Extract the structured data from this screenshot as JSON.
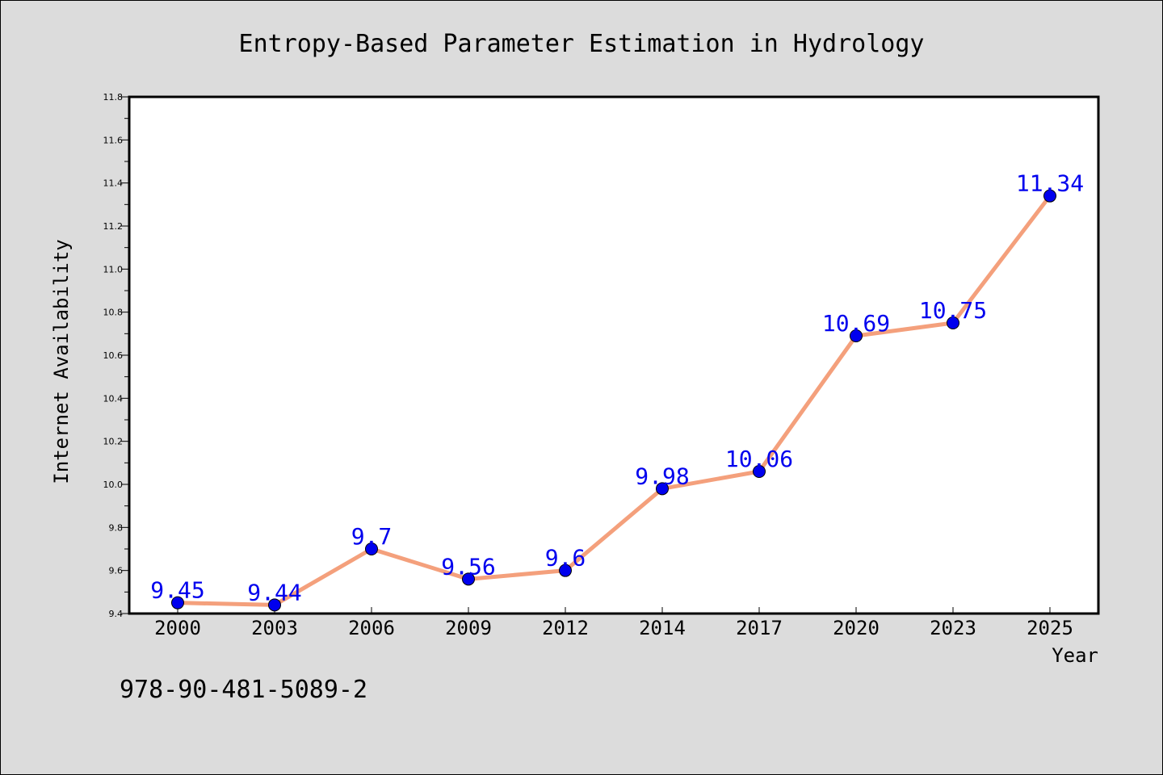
{
  "chart_data": {
    "type": "line",
    "title": "Entropy-Based Parameter Estimation in Hydrology",
    "xlabel": "Year",
    "ylabel": "Internet Availability",
    "categories": [
      "2000",
      "2003",
      "2006",
      "2009",
      "2012",
      "2014",
      "2017",
      "2020",
      "2023",
      "2025"
    ],
    "values": [
      9.45,
      9.44,
      9.7,
      9.56,
      9.6,
      9.98,
      10.06,
      10.69,
      10.75,
      11.34
    ],
    "data_labels": [
      "9.45",
      "9.44",
      "9.7",
      "9.56",
      "9.6",
      "9.98",
      "10.06",
      "10.69",
      "10.75",
      "11.34"
    ],
    "ylim": [
      9.4,
      11.8
    ],
    "yticks": [
      "9.4",
      "9.6",
      "9.8",
      "10.0",
      "10.2",
      "10.4",
      "10.6",
      "10.8",
      "11.0",
      "11.2",
      "11.4",
      "11.6",
      "11.8"
    ],
    "grid": false,
    "line_color": "#f4a07c",
    "marker_color": "#0000ee",
    "label_color": "#0000ee"
  },
  "footer_text": "978-90-481-5089-2"
}
